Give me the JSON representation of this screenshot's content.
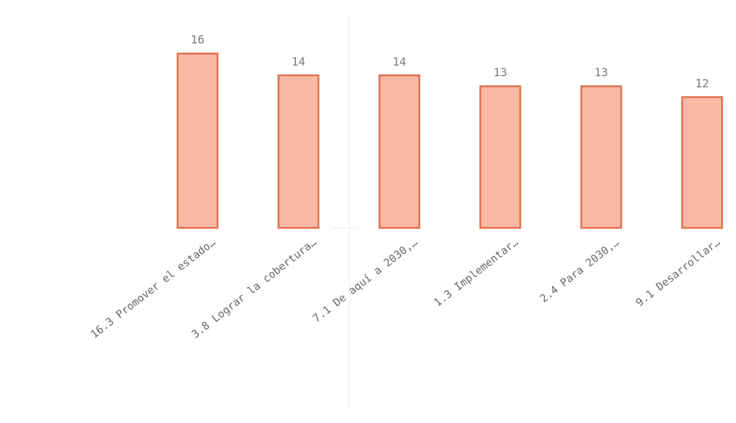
{
  "chart_data": {
    "type": "bar",
    "categories": [
      "16.3 Promover el estado…",
      "3.8 Lograr la cobertura…",
      "7.1  De aquí a 2030,…",
      "1.3 Implementar…",
      "2.4  Para 2030,…",
      "9.1 Desarrollar…"
    ],
    "values": [
      16,
      14,
      14,
      13,
      13,
      12
    ],
    "data_labels": [
      "16",
      "14",
      "14",
      "13",
      "13",
      "12"
    ],
    "ylim": [
      0,
      16
    ],
    "grid": false,
    "legend": "none",
    "colors": {
      "bar_fill": "#F7B9A4",
      "bar_stroke": "#E2704C",
      "label": "#7a7a7a"
    }
  }
}
